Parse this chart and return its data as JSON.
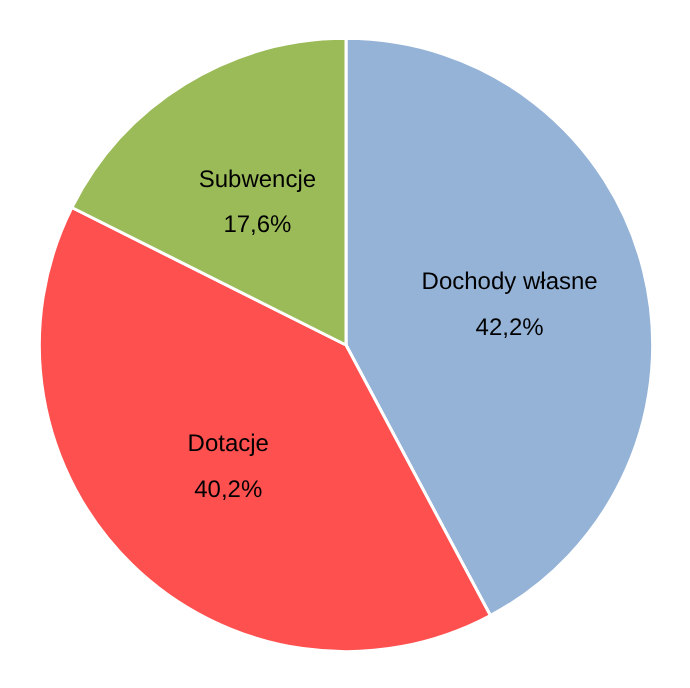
{
  "chart_data": {
    "type": "pie",
    "categories": [
      "Dochody własne",
      "Dotacje",
      "Subwencje"
    ],
    "values": [
      42.2,
      40.2,
      17.6
    ],
    "value_labels": [
      "42,2%",
      "40,2%",
      "17,6%"
    ],
    "colors": [
      "#95b3d7",
      "#ff5050",
      "#9bbb59"
    ]
  }
}
